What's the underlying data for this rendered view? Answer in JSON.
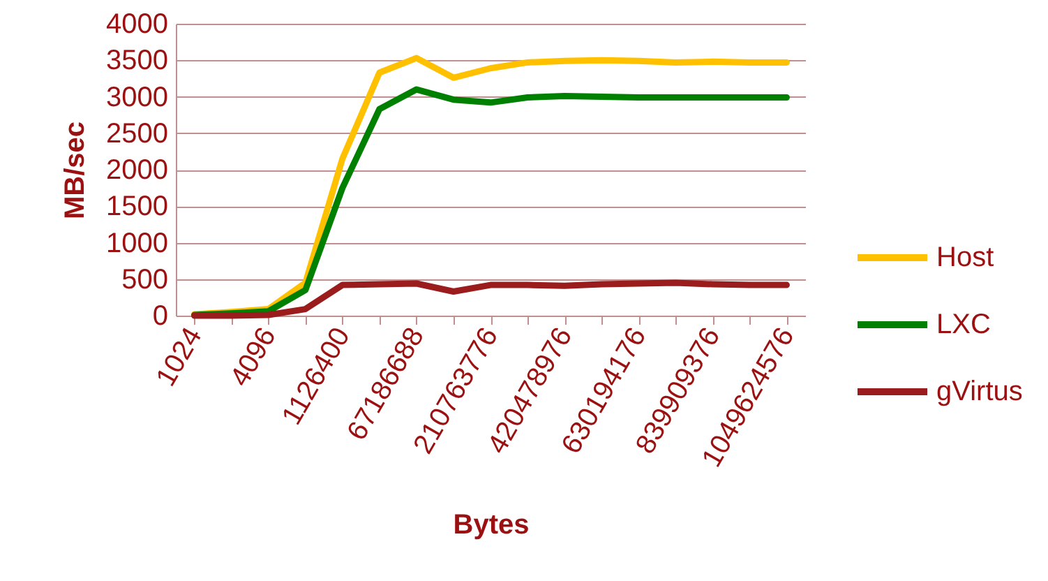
{
  "chart_data": {
    "type": "line",
    "xlabel": "Bytes",
    "ylabel": "MB/sec",
    "categories": [
      "1024",
      null,
      "4096",
      null,
      "1126400",
      null,
      "67186688",
      null,
      "210763776",
      null,
      "420478976",
      null,
      "630194176",
      null,
      "839909376",
      null,
      "1049624576"
    ],
    "series": [
      {
        "name": "Host",
        "color": "#ffc000",
        "values": [
          20,
          50,
          90,
          450,
          2150,
          3330,
          3530,
          3260,
          3390,
          3470,
          3490,
          3500,
          3490,
          3470,
          3480,
          3470,
          3470
        ]
      },
      {
        "name": "LXC",
        "color": "#008000",
        "values": [
          10,
          30,
          60,
          350,
          1750,
          2830,
          3100,
          2960,
          2920,
          2990,
          3010,
          3000,
          2990,
          2990,
          2990,
          2990,
          2990
        ]
      },
      {
        "name": "gVirtus",
        "color": "#9b1c1c",
        "values": [
          0,
          0,
          10,
          90,
          420,
          430,
          440,
          330,
          420,
          420,
          410,
          430,
          440,
          450,
          430,
          420,
          420
        ]
      }
    ],
    "ylim": [
      0,
      4000
    ],
    "yticks": [
      0,
      500,
      1000,
      1500,
      2000,
      2500,
      3000,
      3500,
      4000
    ],
    "grid": "y",
    "legend": "right",
    "marker": "none",
    "line_style": "solid"
  }
}
